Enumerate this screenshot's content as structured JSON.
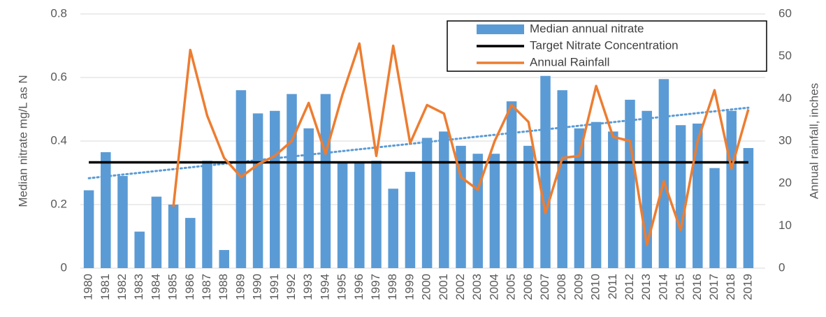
{
  "chart_data": {
    "type": "bar_line",
    "y_label": "Median nitrate mg/L as N",
    "y2_label": "Annual rainfall, inches",
    "categories": [
      "1980",
      "1981",
      "1982",
      "1983",
      "1984",
      "1985",
      "1986",
      "1987",
      "1988",
      "1989",
      "1990",
      "1991",
      "1992",
      "1993",
      "1994",
      "1995",
      "1996",
      "1997",
      "1998",
      "1999",
      "2000",
      "2001",
      "2002",
      "2003",
      "2004",
      "2005",
      "2006",
      "2007",
      "2008",
      "2009",
      "2010",
      "2011",
      "2012",
      "2013",
      "2014",
      "2015",
      "2016",
      "2017",
      "2018",
      "2019"
    ],
    "series": [
      {
        "name": "Median annual nitrate",
        "type": "bar",
        "color": "#5b9bd5",
        "values": [
          0.245,
          0.365,
          0.29,
          0.115,
          0.225,
          0.2,
          0.158,
          0.338,
          0.057,
          0.56,
          0.487,
          0.495,
          0.548,
          0.44,
          0.548,
          0.33,
          0.33,
          0.338,
          0.25,
          0.303,
          0.41,
          0.43,
          0.385,
          0.36,
          0.36,
          0.525,
          0.385,
          0.605,
          0.56,
          0.44,
          0.46,
          0.43,
          0.53,
          0.495,
          0.595,
          0.45,
          0.455,
          0.315,
          0.495,
          0.378
        ]
      },
      {
        "name": "Target Nitrate Concentration",
        "type": "line",
        "color": "#000000",
        "values": [
          0.333,
          0.333,
          0.333,
          0.333,
          0.333,
          0.333,
          0.333,
          0.333,
          0.333,
          0.333,
          0.333,
          0.333,
          0.333,
          0.333,
          0.333,
          0.333,
          0.333,
          0.333,
          0.333,
          0.333,
          0.333,
          0.333,
          0.333,
          0.333,
          0.333,
          0.333,
          0.333,
          0.333,
          0.333,
          0.333,
          0.333,
          0.333,
          0.333,
          0.333,
          0.333,
          0.333,
          0.333,
          0.333,
          0.333,
          0.333
        ]
      },
      {
        "name": "Annual Rainfall",
        "type": "line",
        "axis": "y2",
        "color": "#ed7d31",
        "values": [
          null,
          null,
          null,
          null,
          null,
          14.5,
          51.5,
          36,
          26,
          21.5,
          24.5,
          26.5,
          30,
          39,
          27,
          41,
          53,
          26.5,
          52.5,
          29.5,
          38.5,
          36.5,
          21.5,
          18.5,
          30,
          38.5,
          34.5,
          13,
          26,
          26.5,
          43,
          31,
          30,
          5.5,
          20.5,
          9,
          30,
          42,
          23.5,
          37.5
        ]
      }
    ],
    "trendline": {
      "color": "#5b9bd5",
      "values": [
        0.283,
        0.505
      ]
    },
    "ylim": [
      0,
      0.8
    ],
    "yticks": [
      0,
      0.2,
      0.4,
      0.6,
      0.8
    ],
    "y2lim": [
      0,
      60
    ],
    "y2ticks": [
      0,
      10,
      20,
      30,
      40,
      50,
      60
    ],
    "grid": true
  }
}
